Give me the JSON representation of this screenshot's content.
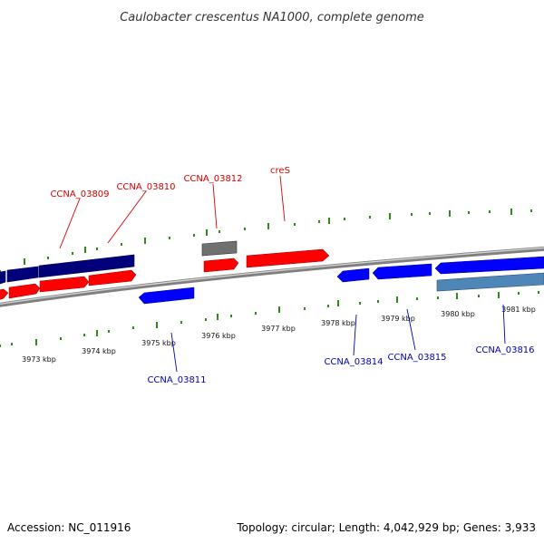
{
  "title": "Caulobacter crescentus NA1000, complete genome",
  "footer": {
    "accession": "Accession: NC_011916",
    "summary": "Topology: circular; Length: 4,042,929 bp; Genes: 3,933"
  },
  "colors": {
    "forward_gene": "#ff0000",
    "reverse_gene": "#0000ff",
    "dark_feature": "#00007a",
    "grey_feature": "#707070",
    "steel_feature": "#4f86b8",
    "ticks": "#2e8b16",
    "backbone": "#8a8a8a"
  },
  "scale_labels": [
    "3973 kbp",
    "3974 kbp",
    "3975 kbp",
    "3976 kbp",
    "3977 kbp",
    "3978 kbp",
    "3979 kbp",
    "3980 kbp",
    "3981 kbp"
  ],
  "gene_labels": {
    "forward": [
      "CCNA_03809",
      "CCNA_03810",
      "CCNA_03812",
      "creS"
    ],
    "reverse": [
      "CCNA_03811",
      "CCNA_03814",
      "CCNA_03815",
      "CCNA_03816"
    ]
  }
}
